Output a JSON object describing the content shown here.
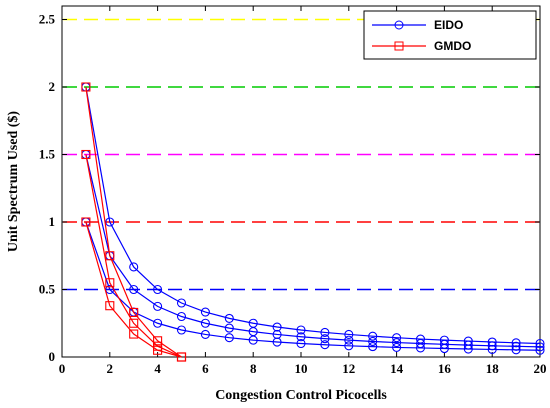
{
  "chart_data": {
    "type": "line",
    "xlabel": "Congestion Control Picocells",
    "ylabel": "Unit Spectrum Used ($)",
    "xlim": [
      0,
      20
    ],
    "ylim": [
      0,
      2.6
    ],
    "xticks": [
      0,
      2,
      4,
      6,
      8,
      10,
      12,
      14,
      16,
      18,
      20
    ],
    "yticks": [
      0,
      0.5,
      1,
      1.5,
      2,
      2.5
    ],
    "ytick_labels": [
      "0",
      "0.5",
      "1",
      "1.5",
      "2",
      "2.5"
    ],
    "grid": false,
    "legend_position": "top-right",
    "reference_lines": [
      {
        "y": 0.5,
        "color": "#0000ff"
      },
      {
        "y": 1.0,
        "color": "#ff0000"
      },
      {
        "y": 1.5,
        "color": "#ff00ff"
      },
      {
        "y": 2.0,
        "color": "#00cc00"
      },
      {
        "y": 2.5,
        "color": "#ffff00"
      }
    ],
    "series": [
      {
        "name": "EIDO",
        "color": "#0000ff",
        "marker": "circle",
        "x": [
          1,
          2,
          3,
          4,
          5,
          6,
          7,
          8,
          9,
          10,
          11,
          12,
          13,
          14,
          15,
          16,
          17,
          18,
          19,
          20
        ],
        "y": [
          2.0,
          1.0,
          0.667,
          0.5,
          0.4,
          0.333,
          0.286,
          0.25,
          0.222,
          0.2,
          0.182,
          0.167,
          0.154,
          0.143,
          0.133,
          0.125,
          0.118,
          0.111,
          0.105,
          0.1
        ]
      },
      {
        "name": "",
        "color": "#0000ff",
        "marker": "circle",
        "x": [
          1,
          2,
          3,
          4,
          5,
          6,
          7,
          8,
          9,
          10,
          11,
          12,
          13,
          14,
          15,
          16,
          17,
          18,
          19,
          20
        ],
        "y": [
          1.5,
          0.75,
          0.5,
          0.375,
          0.3,
          0.25,
          0.214,
          0.188,
          0.167,
          0.15,
          0.136,
          0.125,
          0.115,
          0.107,
          0.1,
          0.094,
          0.088,
          0.083,
          0.079,
          0.075
        ]
      },
      {
        "name": "",
        "color": "#0000ff",
        "marker": "circle",
        "x": [
          1,
          2,
          3,
          4,
          5,
          6,
          7,
          8,
          9,
          10,
          11,
          12,
          13,
          14,
          15,
          16,
          17,
          18,
          19,
          20
        ],
        "y": [
          1.0,
          0.5,
          0.333,
          0.25,
          0.2,
          0.167,
          0.143,
          0.125,
          0.111,
          0.1,
          0.091,
          0.083,
          0.077,
          0.071,
          0.067,
          0.063,
          0.059,
          0.056,
          0.053,
          0.05
        ]
      },
      {
        "name": "GMDO",
        "color": "#ff0000",
        "marker": "square",
        "x": [
          1,
          2,
          3,
          4,
          5
        ],
        "y": [
          2.0,
          0.75,
          0.33,
          0.12,
          0.0
        ]
      },
      {
        "name": "",
        "color": "#ff0000",
        "marker": "square",
        "x": [
          1,
          2,
          3,
          4,
          5
        ],
        "y": [
          1.5,
          0.55,
          0.25,
          0.08,
          0.0
        ]
      },
      {
        "name": "",
        "color": "#ff0000",
        "marker": "square",
        "x": [
          1,
          2,
          3,
          4,
          5
        ],
        "y": [
          1.0,
          0.38,
          0.17,
          0.05,
          0.0
        ]
      }
    ]
  }
}
